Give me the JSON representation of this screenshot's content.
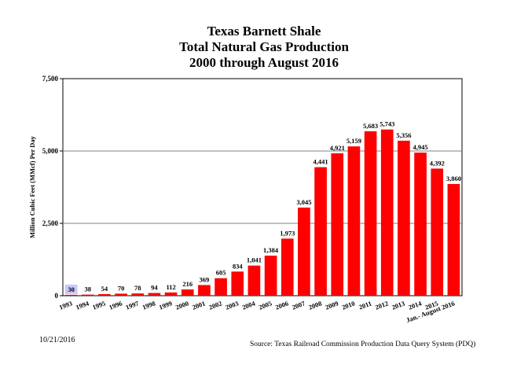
{
  "chart_data": {
    "type": "bar",
    "title": [
      "Texas Barnett Shale",
      "Total Natural Gas Production",
      "2000 through August 2016"
    ],
    "ylabel": "Million Cubic Feet (MMcf) Per Day",
    "xlabel": "",
    "ylim": [
      0,
      7500
    ],
    "yticks": [
      "0",
      "2,500",
      "5,000",
      "7,500"
    ],
    "ytick_values": [
      0,
      2500,
      5000,
      7500
    ],
    "grid": true,
    "categories": [
      "1993",
      "1994",
      "1995",
      "1996",
      "1997",
      "1998",
      "1999",
      "2000",
      "2001",
      "2002",
      "2003",
      "2004",
      "2005",
      "2006",
      "2007",
      "2008",
      "2009",
      "2010",
      "2011",
      "2012",
      "2013",
      "2014",
      "2015",
      "Jan.- August 2016"
    ],
    "values": [
      30,
      38,
      54,
      70,
      78,
      94,
      112,
      216,
      369,
      605,
      834,
      1041,
      1384,
      1973,
      3045,
      4441,
      4921,
      5159,
      5683,
      5743,
      5356,
      4945,
      4392,
      3860
    ],
    "value_labels": [
      "30",
      "38",
      "54",
      "70",
      "78",
      "94",
      "112",
      "216",
      "369",
      "605",
      "834",
      "1,041",
      "1,384",
      "1,973",
      "3,045",
      "4,441",
      "4,921",
      "5,159",
      "5,683",
      "5,743",
      "5,356",
      "4,945",
      "4,392",
      "3,860"
    ],
    "bar_color": "#ff0000",
    "highlight_first_label_bg": "#c8c8ff"
  },
  "footer": {
    "date": "10/21/2016",
    "source": "Source: Texas Railroad Commission Production Data Query System (PDQ)"
  }
}
